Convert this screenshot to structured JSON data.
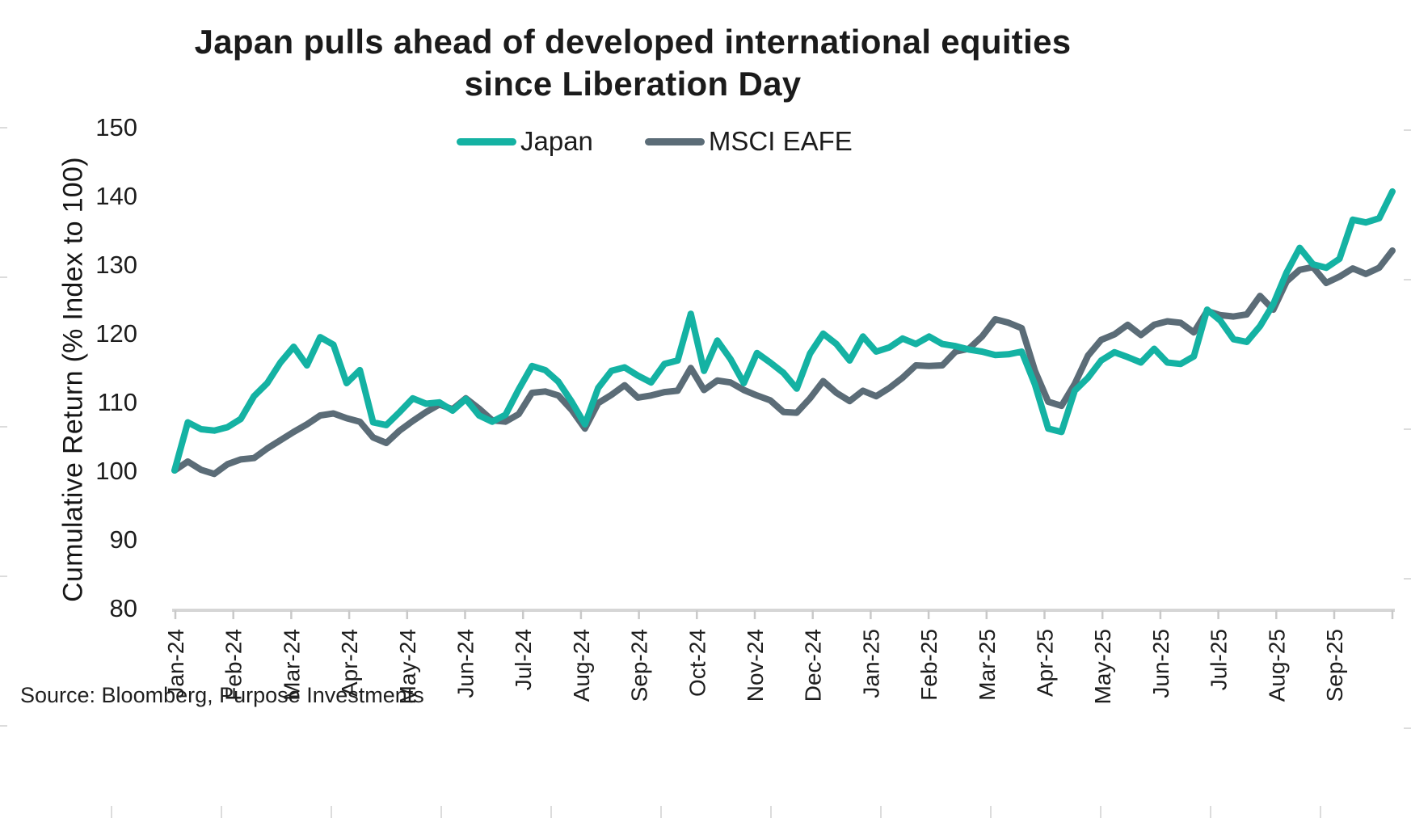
{
  "title": {
    "line1": "Japan pulls ahead of developed international equities",
    "line2": "since Liberation Day"
  },
  "source": "Source: Bloomberg, Purpose Investments",
  "y_axis": {
    "title": "Cumulative Return (% Index to 100)",
    "ticks": [
      150,
      140,
      130,
      120,
      110,
      100,
      90,
      80
    ],
    "min": 80,
    "max": 150
  },
  "x_axis": {
    "tick_labels": [
      "Jan-24",
      "Feb-24",
      "Mar-24",
      "Apr-24",
      "May-24",
      "Jun-24",
      "Jul-24",
      "Aug-24",
      "Sep-24",
      "Oct-24",
      "Nov-24",
      "Dec-24",
      "Jan-25",
      "Feb-25",
      "Mar-25",
      "Apr-25",
      "May-25",
      "Jun-25",
      "Jul-25",
      "Aug-25",
      "Sep-25"
    ]
  },
  "colors": {
    "japan": "#14b2a3",
    "msci_eafe": "#5b6c77",
    "axis_line": "#d6d6d6",
    "tick_mark": "#c9c9c9",
    "text": "#1d1d1d"
  },
  "chart_data": {
    "type": "line",
    "title": "Japan pulls ahead of developed international equities since Liberation Day",
    "xlabel": "",
    "ylabel": "Cumulative Return (% Index to 100)",
    "ylim": [
      80,
      150
    ],
    "grid": false,
    "legend_position": "top",
    "frequency": "weekly",
    "x_tick_labels": [
      "Jan-24",
      "Feb-24",
      "Mar-24",
      "Apr-24",
      "May-24",
      "Jun-24",
      "Jul-24",
      "Aug-24",
      "Sep-24",
      "Oct-24",
      "Nov-24",
      "Dec-24",
      "Jan-25",
      "Feb-25",
      "Mar-25",
      "Apr-25",
      "May-25",
      "Jun-25",
      "Jul-25",
      "Aug-25",
      "Sep-25"
    ],
    "series": [
      {
        "name": "Japan",
        "color": "#14b2a3",
        "values": [
          100,
          107,
          106,
          105.8,
          106.3,
          107.5,
          110.8,
          112.7,
          115.7,
          118,
          115.3,
          119.4,
          118.3,
          112.7,
          114.6,
          107,
          106.6,
          108.5,
          110.5,
          109.7,
          109.9,
          108.7,
          110.4,
          108,
          107.1,
          108.1,
          111.8,
          115.2,
          114.6,
          112.9,
          110,
          106.7,
          112,
          114.5,
          115,
          113.8,
          112.8,
          115.5,
          116,
          122.8,
          114.5,
          118.9,
          116.2,
          112.7,
          117.1,
          115.7,
          114.2,
          111.9,
          117,
          119.9,
          118.4,
          116,
          119.5,
          117.3,
          117.9,
          119.2,
          118.4,
          119.5,
          118.4,
          118.1,
          117.6,
          117.3,
          116.8,
          116.9,
          117.3,
          112.5,
          106.1,
          105.6,
          111.6,
          113.5,
          116,
          117.2,
          116.5,
          115.7,
          117.7,
          115.7,
          115.5,
          116.6,
          123.4,
          121.8,
          119.1,
          118.7,
          121,
          124.2,
          128.8,
          132.4,
          130,
          129.5,
          130.8,
          136.5,
          136.1,
          136.7,
          140.6
        ]
      },
      {
        "name": "MSCI EAFE",
        "color": "#5b6c77",
        "values": [
          100,
          101.3,
          100.1,
          99.5,
          100.9,
          101.6,
          101.8,
          103.2,
          104.4,
          105.6,
          106.7,
          108,
          108.3,
          107.6,
          107.1,
          104.8,
          104,
          105.8,
          107.2,
          108.5,
          109.6,
          108.9,
          110.5,
          109,
          107.3,
          107.1,
          108.2,
          111.3,
          111.5,
          110.9,
          108.8,
          106.1,
          109.8,
          111,
          112.4,
          110.6,
          110.9,
          111.4,
          111.6,
          114.9,
          111.7,
          113.1,
          112.8,
          111.7,
          110.9,
          110.2,
          108.5,
          108.4,
          110.5,
          113,
          111.3,
          110.1,
          111.6,
          110.8,
          112,
          113.5,
          115.3,
          115.2,
          115.3,
          117.3,
          117.7,
          119.5,
          122,
          121.5,
          120.7,
          114.5,
          110,
          109.4,
          112.6,
          116.7,
          119,
          119.8,
          121.2,
          119.7,
          121.2,
          121.7,
          121.5,
          120.1,
          123.2,
          122.6,
          122.4,
          122.7,
          125.4,
          123.4,
          127.5,
          129.2,
          129.6,
          127.3,
          128.2,
          129.4,
          128.6,
          129.5,
          132
        ]
      }
    ]
  }
}
